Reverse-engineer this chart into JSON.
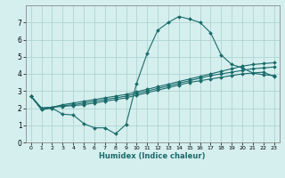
{
  "xlabel": "Humidex (Indice chaleur)",
  "bg_color": "#d4efee",
  "grid_color": "#aacfcf",
  "line_color": "#1a6b6b",
  "xlim": [
    -0.5,
    23.5
  ],
  "ylim": [
    0,
    8
  ],
  "xticks": [
    0,
    1,
    2,
    3,
    4,
    5,
    6,
    7,
    8,
    9,
    10,
    11,
    12,
    13,
    14,
    15,
    16,
    17,
    18,
    19,
    20,
    21,
    22,
    23
  ],
  "yticks": [
    0,
    1,
    2,
    3,
    4,
    5,
    6,
    7
  ],
  "series": [
    [
      2.7,
      1.9,
      2.0,
      1.65,
      1.6,
      1.1,
      0.85,
      0.85,
      0.5,
      1.05,
      3.45,
      5.2,
      6.55,
      7.0,
      7.35,
      7.2,
      7.0,
      6.4,
      5.1,
      4.55,
      4.35,
      4.05,
      3.95,
      3.9
    ],
    [
      2.7,
      2.0,
      2.05,
      2.2,
      2.3,
      2.4,
      2.5,
      2.6,
      2.7,
      2.8,
      2.95,
      3.1,
      3.25,
      3.4,
      3.55,
      3.7,
      3.85,
      4.0,
      4.15,
      4.3,
      4.45,
      4.55,
      4.6,
      4.65
    ],
    [
      2.7,
      2.0,
      2.05,
      2.15,
      2.2,
      2.3,
      2.4,
      2.5,
      2.6,
      2.7,
      2.85,
      3.0,
      3.15,
      3.3,
      3.45,
      3.6,
      3.75,
      3.9,
      4.0,
      4.1,
      4.2,
      4.3,
      4.35,
      4.4
    ],
    [
      2.7,
      2.0,
      2.05,
      2.1,
      2.15,
      2.2,
      2.3,
      2.4,
      2.5,
      2.6,
      2.75,
      2.9,
      3.05,
      3.2,
      3.35,
      3.5,
      3.6,
      3.7,
      3.8,
      3.9,
      4.0,
      4.05,
      4.1,
      3.85
    ]
  ]
}
